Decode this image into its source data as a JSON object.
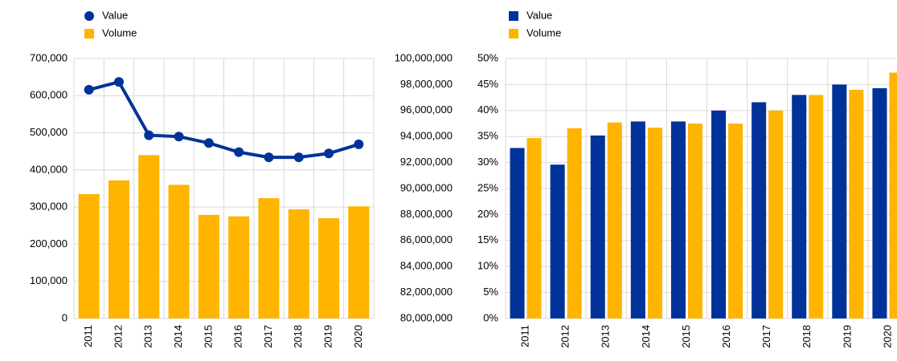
{
  "chart_data": [
    {
      "type": "combo",
      "categories": [
        "2011",
        "2012",
        "2013",
        "2014",
        "2015",
        "2016",
        "2017",
        "2018",
        "2019",
        "2020"
      ],
      "series": [
        {
          "name": "Value",
          "type": "line",
          "axis": "y2",
          "color": "#003299",
          "values": [
            97600000,
            98200000,
            94100000,
            94000000,
            93500000,
            92800000,
            92400000,
            92400000,
            92700000,
            93400000
          ]
        },
        {
          "name": "Volume",
          "type": "bar",
          "color": "#ffb400",
          "values": [
            335000,
            372000,
            440000,
            360000,
            279000,
            275000,
            324000,
            294000,
            270000,
            302000
          ]
        }
      ],
      "ylim": [
        0,
        700000
      ],
      "yticks": [
        0,
        {
          "value": 100000,
          "label": "100,000"
        },
        {
          "value": 200000,
          "label": "200,000"
        },
        {
          "value": 300000,
          "label": "300,000"
        },
        {
          "value": 400000,
          "label": "400,000"
        },
        {
          "value": 500000,
          "label": "500,000"
        },
        {
          "value": 600000,
          "label": "600,000"
        },
        {
          "value": 700000,
          "label": "700,000"
        }
      ],
      "y2lim": [
        80000000,
        100000000
      ],
      "y2ticks": [
        {
          "value": 80000000,
          "label": "80,000,000"
        },
        {
          "value": 82000000,
          "label": "82,000,000"
        },
        {
          "value": 84000000,
          "label": "84,000,000"
        },
        {
          "value": 86000000,
          "label": "86,000,000"
        },
        {
          "value": 88000000,
          "label": "88,000,000"
        },
        {
          "value": 90000000,
          "label": "90,000,000"
        },
        {
          "value": 92000000,
          "label": "92,000,000"
        },
        {
          "value": 94000000,
          "label": "94,000,000"
        },
        {
          "value": 96000000,
          "label": "96,000,000"
        },
        {
          "value": 98000000,
          "label": "98,000,000"
        },
        {
          "value": 100000000,
          "label": "100,000,000"
        }
      ],
      "grid": true,
      "legend": "top-left"
    },
    {
      "type": "bar",
      "categories": [
        "2011",
        "2012",
        "2013",
        "2014",
        "2015",
        "2016",
        "2017",
        "2018",
        "2019",
        "2020"
      ],
      "series": [
        {
          "name": "Value",
          "color": "#003299",
          "values": [
            32.8,
            29.6,
            35.2,
            37.9,
            37.9,
            40.0,
            41.6,
            43.0,
            45.0,
            44.3
          ]
        },
        {
          "name": "Volume",
          "color": "#ffb400",
          "values": [
            34.7,
            36.6,
            37.7,
            36.7,
            37.5,
            37.5,
            40.0,
            43.0,
            44.0,
            47.3
          ]
        }
      ],
      "ylim": [
        0,
        50
      ],
      "yticks": [
        {
          "value": 0,
          "label": "0%"
        },
        {
          "value": 5,
          "label": "5%"
        },
        {
          "value": 10,
          "label": "10%"
        },
        {
          "value": 15,
          "label": "15%"
        },
        {
          "value": 20,
          "label": "20%"
        },
        {
          "value": 25,
          "label": "25%"
        },
        {
          "value": 30,
          "label": "30%"
        },
        {
          "value": 35,
          "label": "35%"
        },
        {
          "value": 40,
          "label": "40%"
        },
        {
          "value": 45,
          "label": "45%"
        },
        {
          "value": 50,
          "label": "50%"
        }
      ],
      "grid": true,
      "legend": "top-left"
    }
  ]
}
